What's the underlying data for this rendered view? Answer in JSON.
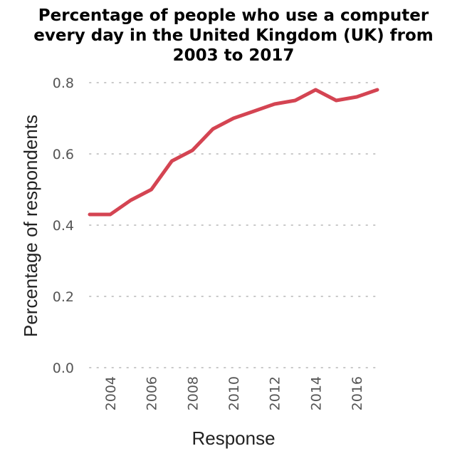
{
  "chart_data": {
    "type": "line",
    "title_lines": [
      "Percentage of people who use a computer",
      "every day in the United Kingdom (UK) from",
      "2003 to 2017"
    ],
    "xlabel": "Response",
    "ylabel": "Percentage of respondents",
    "x_ticks": [
      "2004",
      "2006",
      "2008",
      "2010",
      "2012",
      "2014",
      "2016"
    ],
    "y_ticks": [
      "0.0",
      "0.2",
      "0.4",
      "0.6",
      "0.8"
    ],
    "xlim": [
      2003,
      2017
    ],
    "ylim": [
      0,
      0.8
    ],
    "grid": "horizontal-dotted",
    "line_color": "#d44452",
    "grid_color": "#c8c8c8",
    "series": [
      {
        "x": [
          2003,
          2004,
          2005,
          2006,
          2007,
          2008,
          2009,
          2010,
          2011,
          2012,
          2013,
          2014,
          2015,
          2016,
          2017
        ],
        "values": [
          0.43,
          0.43,
          0.47,
          0.5,
          0.58,
          0.61,
          0.67,
          0.7,
          0.72,
          0.74,
          0.75,
          0.78,
          0.75,
          0.76,
          0.78
        ]
      }
    ]
  }
}
